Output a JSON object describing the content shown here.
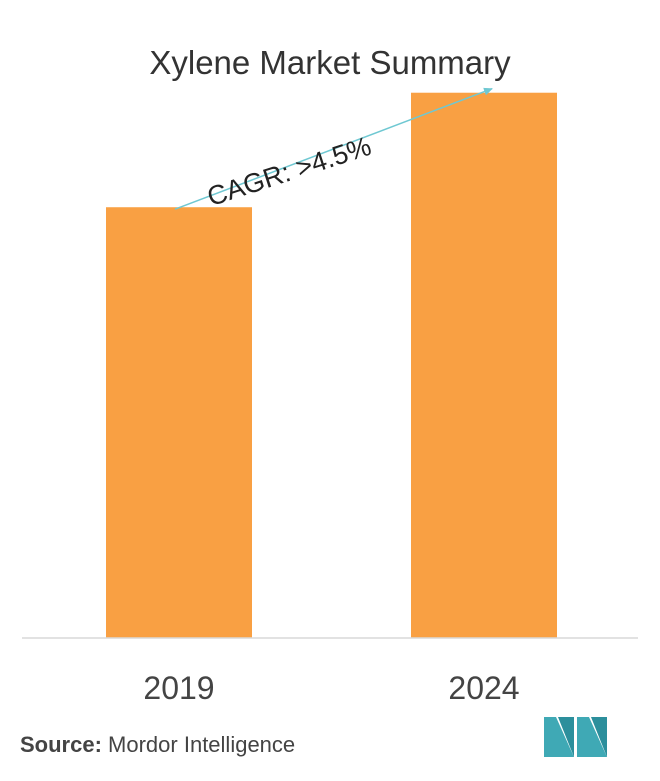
{
  "title": "Xylene Market Summary",
  "source": {
    "label": "Source:",
    "text": "Mordor Intelligence"
  },
  "colors": {
    "bar": "#f9a043",
    "arrow": "#6fc8d2",
    "axis": "#d9d9d9",
    "logo": "#3fa9b5"
  },
  "chart_data": {
    "type": "bar",
    "categories": [
      "2019",
      "2024"
    ],
    "values": [
      3.95,
      5
    ],
    "ylim": [
      0,
      5.3
    ],
    "annotation": "CAGR: >4.5%",
    "grid": false,
    "xlabel": "",
    "ylabel": ""
  }
}
